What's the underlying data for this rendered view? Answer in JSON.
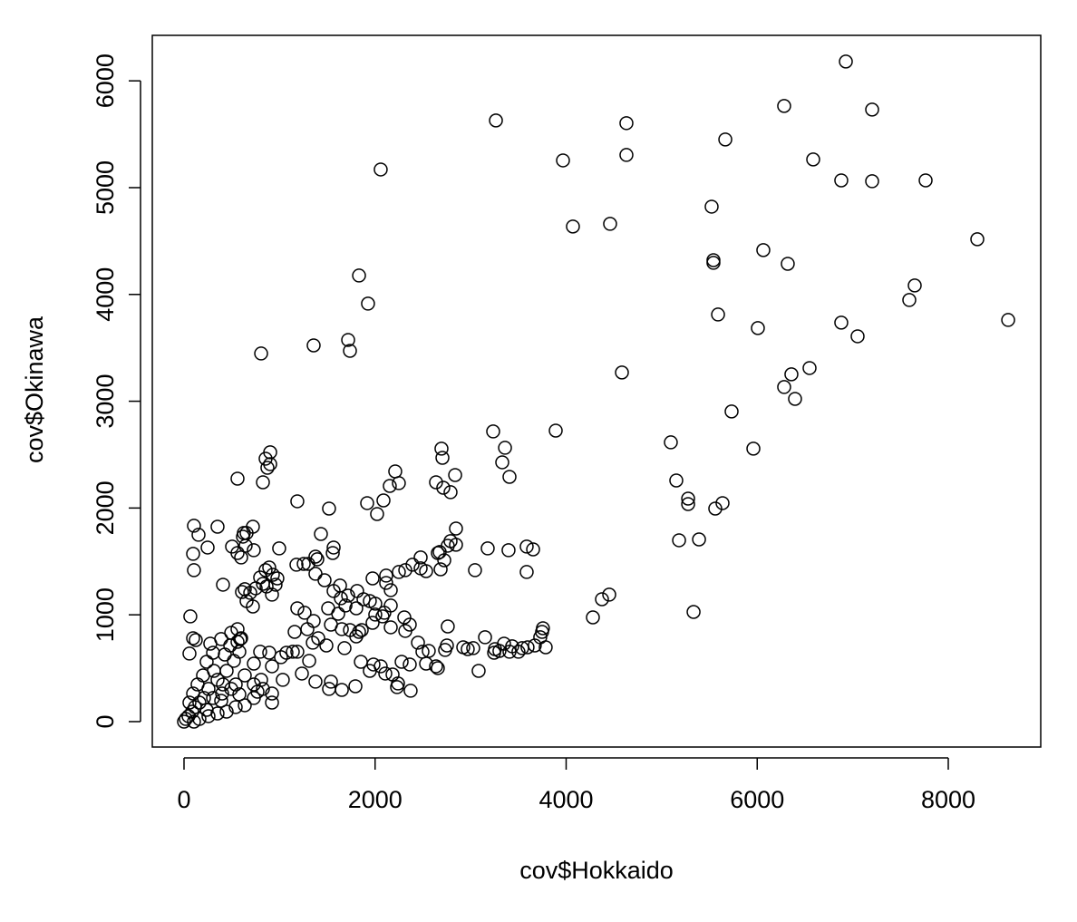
{
  "chart_data": {
    "type": "scatter",
    "x_label": "cov$Hokkaido",
    "y_label": "cov$Okinawa",
    "xlim": [
      -332,
      8968
    ],
    "ylim": [
      -238,
      6426
    ],
    "xticks": [
      0,
      2000,
      4000,
      6000,
      8000
    ],
    "yticks": [
      0,
      1000,
      2000,
      3000,
      4000,
      5000,
      6000
    ],
    "color": "#000000",
    "x": [
      6928,
      3265,
      4631,
      6282,
      7203,
      2059,
      3967,
      4631,
      6586,
      6880,
      7203,
      7763,
      5666,
      5523,
      4071,
      4460,
      5542,
      5542,
      6064,
      6320,
      8304,
      7649,
      7592,
      8627,
      1832,
      1926,
      807,
      1357,
      1718,
      1737,
      5590,
      6007,
      6880,
      7051,
      4584,
      6548,
      6358,
      6282,
      6396,
      5732,
      5960,
      5096,
      3891,
      3236,
      3360,
      3331,
      3407,
      2695,
      2705,
      2838,
      2638,
      2714,
      2790,
      2211,
      2249,
      2154,
      2088,
      1917,
      2021,
      1186,
      1518,
      560,
      826,
      854,
      902,
      902,
      873,
      5153,
      5277,
      5277,
      5561,
      5637,
      5182,
      5391,
      5334,
      4280,
      4375,
      4451,
      3587,
      3654,
      3587,
      3397,
      3179,
      3046,
      2847,
      2790,
      2847,
      2761,
      2676,
      2657,
      2724,
      2686,
      2534,
      2477,
      2392,
      2249,
      2477,
      2316,
      1433,
      1566,
      1557,
      1376,
      1395,
      1300,
      1253,
      1177,
      1376,
      1471,
      1566,
      1633,
      1718,
      1812,
      1879,
      1945,
      1974,
      2116,
      2116,
      2164,
      2002,
      2078,
      2164,
      2097,
      2306,
      2164,
      1642,
      1509,
      1614,
      1690,
      1803,
      1860,
      1974,
      2002,
      1186,
      1262,
      1357,
      1291,
      1158,
      1186,
      1139,
      1310,
      1234,
      1376,
      1348,
      1405,
      1490,
      1538,
      1652,
      1737,
      1680,
      1803,
      1832,
      1538,
      1518,
      1652,
      1794,
      1851,
      1945,
      1983,
      2059,
      2107,
      2183,
      2240,
      2230,
      2372,
      2363,
      2278,
      2496,
      2562,
      2534,
      2638,
      2657,
      2733,
      2752,
      2761,
      2449,
      2316,
      2363,
      2923,
      2970,
      3027,
      3084,
      3151,
      3255,
      3302,
      3350,
      3435,
      3539,
      3596,
      3672,
      3729,
      3757,
      3786,
      3501,
      3246,
      3407,
      3748,
      104,
      152,
      95,
      104,
      66,
      57,
      95,
      123,
      247,
      351,
      408,
      503,
      560,
      598,
      617,
      655,
      721,
      730,
      607,
      655,
      693,
      750,
      636,
      721,
      645,
      626,
      996,
      854,
      892,
      930,
      977,
      958,
      921,
      797,
      826,
      864,
      560,
      598,
      579,
      522,
      446,
      351,
      256,
      161,
      85,
      19,
      0,
      47,
      114,
      209,
      304,
      399,
      494,
      541,
      636,
      731,
      826,
      921,
      1034,
      1072,
      1015,
      892,
      797,
      731,
      636,
      541,
      446,
      351,
      256,
      161,
      104,
      237,
      389,
      579,
      769,
      484,
      389,
      304,
      237,
      199,
      142,
      95,
      57,
      275,
      560,
      494,
      588,
      427,
      313,
      408,
      921,
      921,
      807,
      731
    ],
    "y": [
      6181,
      5629,
      5604,
      5765,
      5731,
      5170,
      5255,
      5306,
      5264,
      5068,
      5060,
      5068,
      5451,
      4822,
      4636,
      4661,
      4321,
      4296,
      4415,
      4287,
      4517,
      4084,
      3948,
      3761,
      4177,
      3914,
      3447,
      3523,
      3574,
      3472,
      3812,
      3685,
      3736,
      3608,
      3269,
      3311,
      3252,
      3133,
      3022,
      2904,
      2556,
      2615,
      2725,
      2717,
      2564,
      2428,
      2292,
      2556,
      2470,
      2309,
      2241,
      2190,
      2148,
      2343,
      2233,
      2207,
      2071,
      2046,
      1944,
      2063,
      1995,
      2275,
      2241,
      2462,
      2411,
      2522,
      2377,
      2258,
      2088,
      2037,
      1995,
      2046,
      1698,
      1706,
      1027,
      976,
      1146,
      1189,
      1401,
      1613,
      1639,
      1605,
      1622,
      1418,
      1808,
      1690,
      1656,
      1647,
      1588,
      1579,
      1511,
      1426,
      1409,
      1537,
      1469,
      1401,
      1435,
      1418,
      1757,
      1630,
      1579,
      1545,
      1520,
      1477,
      1477,
      1469,
      1384,
      1324,
      1223,
      1274,
      1180,
      1223,
      1146,
      1129,
      1341,
      1367,
      1299,
      1231,
      1104,
      985,
      1087,
      1019,
      976,
      883,
      1155,
      1061,
      1010,
      1087,
      1061,
      857,
      925,
      1002,
      1061,
      1019,
      942,
      866,
      840,
      654,
      654,
      569,
      450,
      374,
      739,
      781,
      713,
      908,
      866,
      857,
      688,
      798,
      840,
      374,
      306,
      297,
      331,
      560,
      475,
      535,
      518,
      450,
      441,
      357,
      323,
      289,
      535,
      560,
      654,
      662,
      543,
      518,
      501,
      671,
      713,
      891,
      739,
      849,
      908,
      696,
      679,
      688,
      475,
      790,
      679,
      662,
      730,
      705,
      688,
      696,
      713,
      790,
      874,
      696,
      654,
      645,
      654,
      840,
      1834,
      1749,
      1571,
      1418,
      985,
      637,
      781,
      764,
      1630,
      1825,
      1282,
      1639,
      1579,
      1537,
      1732,
      1766,
      1825,
      1605,
      1214,
      1129,
      1206,
      1248,
      1240,
      1078,
      1647,
      1766,
      1622,
      1418,
      1443,
      1375,
      1341,
      1282,
      1189,
      1350,
      1290,
      1265,
      866,
      781,
      654,
      569,
      475,
      391,
      306,
      178,
      93,
      25,
      0,
      51,
      136,
      221,
      221,
      263,
      306,
      348,
      433,
      348,
      306,
      263,
      391,
      645,
      603,
      645,
      654,
      543,
      153,
      136,
      93,
      76,
      51,
      25,
      0,
      110,
      195,
      255,
      280,
      713,
      773,
      645,
      560,
      433,
      348,
      263,
      178,
      730,
      747,
      832,
      773,
      628,
      475,
      348,
      518,
      178,
      391,
      221
    ]
  }
}
